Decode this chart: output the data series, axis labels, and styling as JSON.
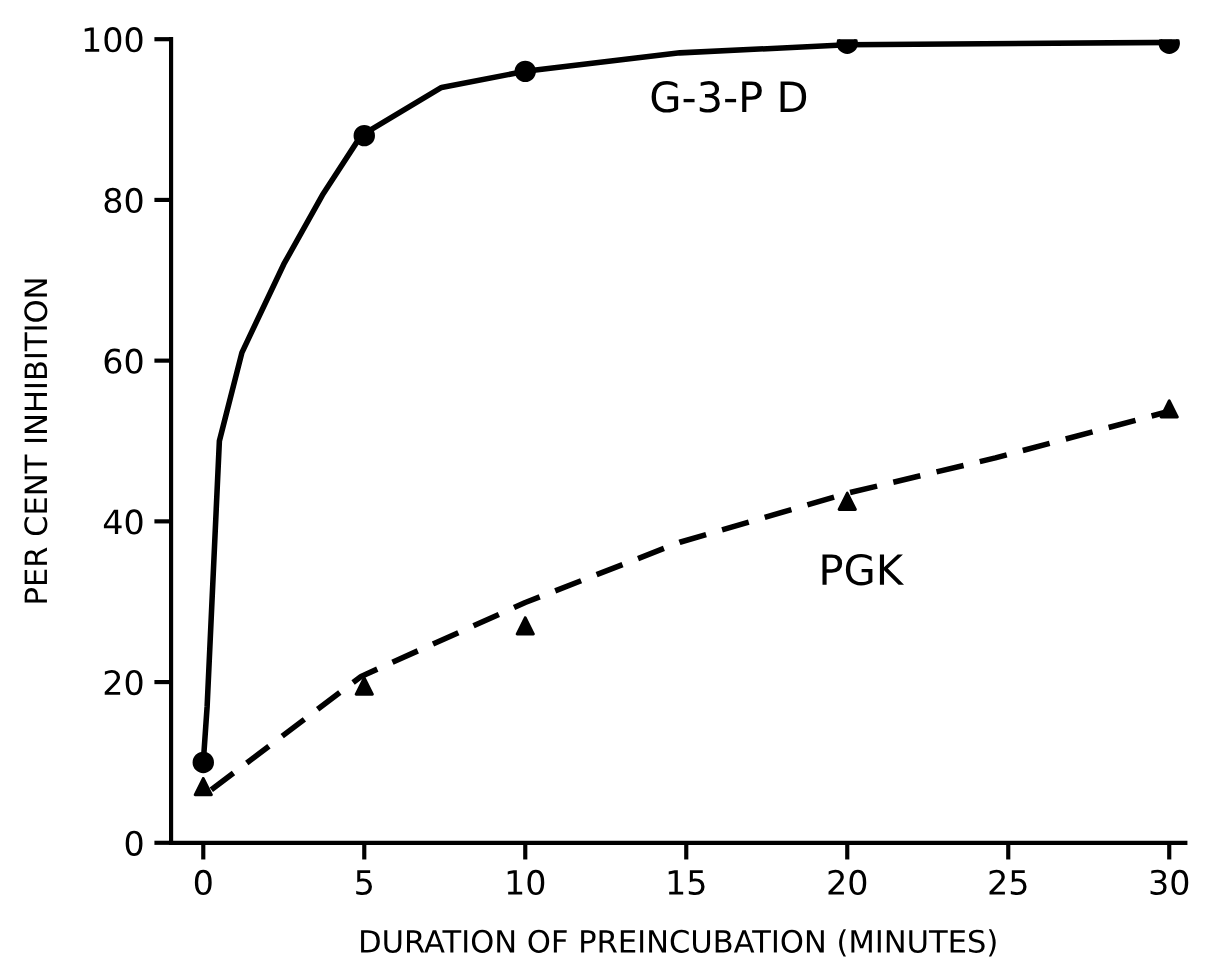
{
  "chart_data": {
    "type": "scatter",
    "xlabel": "DURATION OF PREINCUBATION (MINUTES)",
    "ylabel": "PER CENT INHIBITION",
    "xlim": [
      -1,
      30.5
    ],
    "xticks": [
      0,
      5,
      10,
      15,
      20,
      25,
      30
    ],
    "ylim": [
      0,
      100
    ],
    "yticks": [
      0,
      20,
      40,
      60,
      80,
      100
    ],
    "grid": false,
    "series": [
      {
        "marker": "circle",
        "color": "#000000",
        "x": [
          0,
          5,
          10,
          20,
          30
        ],
        "values": [
          10,
          88,
          96,
          99.5,
          99.5
        ]
      },
      {
        "marker": "triangle",
        "color": "#000000",
        "x": [
          0,
          5,
          10,
          20,
          30
        ],
        "values": [
          7,
          19.5,
          27,
          42.5,
          54
        ]
      },
      {
        "type": "line",
        "name": "G-3-P D",
        "line_style": "solid",
        "color": "#000000",
        "x": [
          0,
          0.12,
          0.5,
          1.2,
          2.5,
          3.7,
          4.9,
          7.4,
          10,
          14.8,
          20,
          30
        ],
        "values": [
          10,
          17,
          50,
          61,
          72,
          80.6,
          88,
          94,
          96,
          98.3,
          99.3,
          99.6
        ]
      },
      {
        "type": "line",
        "name": "PGK",
        "line_style": "dashed",
        "color": "#000000",
        "x": [
          0.25,
          4.9,
          10,
          14.8,
          20,
          24.6,
          30
        ],
        "values": [
          6.6,
          20.7,
          29.9,
          37.4,
          43.5,
          47.9,
          53.7
        ]
      }
    ]
  }
}
